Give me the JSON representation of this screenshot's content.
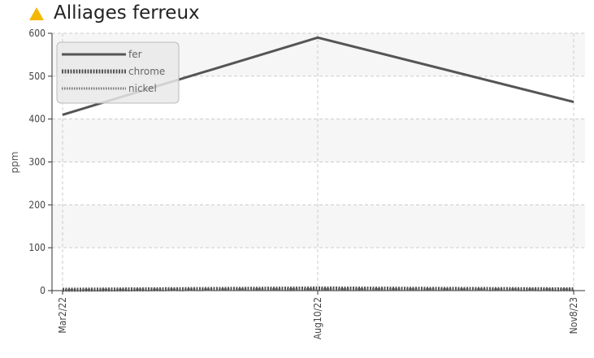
{
  "header": {
    "title": "Alliages ferreux",
    "icon": "warning-triangle-icon",
    "icon_color": "#f5b800"
  },
  "chart_data": {
    "type": "line",
    "title": "Alliages ferreux",
    "ylabel": "ppm",
    "xlabel": "",
    "categories": [
      "Mar2/22",
      "Aug10/22",
      "Nov8/23"
    ],
    "ylim": [
      0,
      600
    ],
    "yticks": [
      0,
      100,
      200,
      300,
      400,
      500,
      600
    ],
    "grid": true,
    "legend_position": "top-left",
    "series": [
      {
        "name": "fer",
        "values": [
          410,
          590,
          440
        ],
        "color": "#555555",
        "style": "solid"
      },
      {
        "name": "chrome",
        "values": [
          2,
          5,
          3
        ],
        "color": "#555555",
        "style": "dotted-thick"
      },
      {
        "name": "nickel",
        "values": [
          1,
          3,
          2
        ],
        "color": "#777777",
        "style": "dotted-thin"
      }
    ]
  }
}
